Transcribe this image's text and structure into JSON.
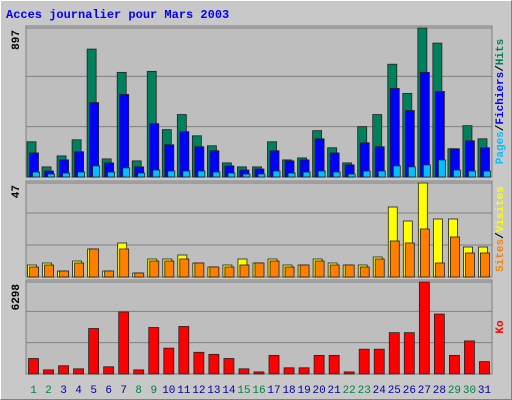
{
  "chart_data": [
    {
      "type": "bar",
      "title": "Acces journalier pour Mars 2003",
      "ylim": [
        0,
        897
      ],
      "yticks": [
        897
      ],
      "grid": true,
      "legend_separator": "/",
      "series": [
        {
          "name": "Hits",
          "color": "#00805c",
          "values": [
            212,
            61,
            127,
            224,
            770,
            109,
            630,
            97,
            636,
            285,
            376,
            248,
            188,
            85,
            61,
            61,
            212,
            103,
            115,
            279,
            176,
            85,
            303,
            376,
            679,
            503,
            897,
            806,
            170,
            309,
            230
          ]
        },
        {
          "name": "Fichiers",
          "color": "#0000ff",
          "values": [
            145,
            36,
            103,
            152,
            448,
            85,
            497,
            61,
            321,
            194,
            273,
            182,
            158,
            67,
            42,
            48,
            158,
            97,
            103,
            230,
            145,
            73,
            206,
            182,
            533,
            400,
            630,
            515,
            170,
            218,
            176
          ]
        },
        {
          "name": "Pages",
          "color": "#00c0ff",
          "values": [
            30,
            18,
            24,
            30,
            67,
            30,
            55,
            24,
            42,
            36,
            36,
            36,
            30,
            24,
            18,
            18,
            36,
            24,
            30,
            36,
            30,
            18,
            36,
            36,
            67,
            61,
            73,
            103,
            42,
            36,
            36
          ]
        }
      ]
    },
    {
      "type": "bar",
      "ylim": [
        0,
        47
      ],
      "yticks": [
        47
      ],
      "grid": true,
      "legend_separator": "/",
      "series": [
        {
          "name": "Visites",
          "color": "#ffff00",
          "values": [
            6,
            7,
            3,
            8,
            14,
            3,
            17,
            2,
            9,
            9,
            11,
            7,
            5,
            6,
            9,
            7,
            9,
            6,
            6,
            9,
            7,
            6,
            6,
            10,
            35,
            28,
            47,
            29,
            29,
            15,
            15
          ]
        },
        {
          "name": "Sites",
          "color": "#ff8000",
          "values": [
            5,
            6,
            3,
            7,
            14,
            3,
            14,
            2,
            8,
            8,
            9,
            7,
            5,
            5,
            6,
            7,
            8,
            5,
            6,
            8,
            6,
            6,
            5,
            9,
            18,
            17,
            24,
            7,
            20,
            12,
            12
          ]
        }
      ]
    },
    {
      "type": "bar",
      "ylim": [
        0,
        6298
      ],
      "yticks": [
        6298
      ],
      "grid": true,
      "categories": [
        "1",
        "2",
        "3",
        "4",
        "5",
        "6",
        "7",
        "8",
        "9",
        "10",
        "11",
        "12",
        "13",
        "14",
        "15",
        "16",
        "17",
        "18",
        "19",
        "20",
        "21",
        "22",
        "23",
        "24",
        "25",
        "26",
        "27",
        "28",
        "29",
        "30",
        "31"
      ],
      "category_colors": [
        "#008040",
        "#008040",
        "#0000a0",
        "#0000a0",
        "#0000a0",
        "#0000a0",
        "#0000a0",
        "#008040",
        "#008040",
        "#0000a0",
        "#0000a0",
        "#0000a0",
        "#0000a0",
        "#0000a0",
        "#008040",
        "#008040",
        "#0000a0",
        "#0000a0",
        "#0000a0",
        "#0000a0",
        "#0000a0",
        "#008040",
        "#008040",
        "#0000a0",
        "#0000a0",
        "#0000a0",
        "#0000a0",
        "#0000a0",
        "#008040",
        "#008040",
        "#0000a0"
      ],
      "series": [
        {
          "name": "Ko",
          "color": "#ff0000",
          "values": [
            1061,
            283,
            566,
            354,
            3114,
            495,
            4246,
            283,
            3184,
            1769,
            3255,
            1486,
            1345,
            1061,
            354,
            142,
            1274,
            425,
            425,
            1274,
            1274,
            142,
            1698,
            1698,
            2831,
            2831,
            6298,
            4104,
            1274,
            2264,
            849
          ]
        }
      ]
    }
  ]
}
